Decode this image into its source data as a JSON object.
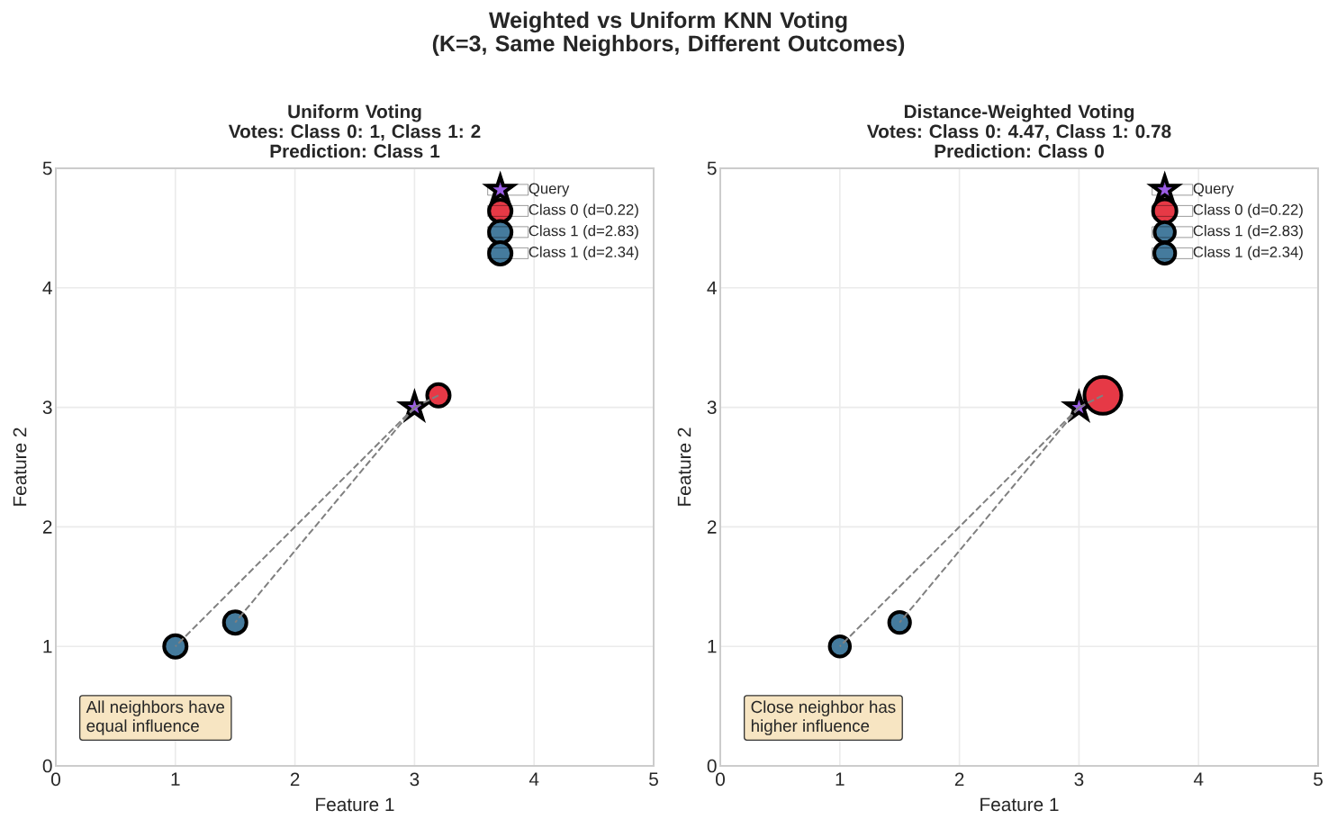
{
  "chart_data": [
    {
      "type": "scatter",
      "title": "Weighted vs Uniform KNN Voting\n(K=3, Same Neighbors, Different Outcomes)",
      "subtitle": "Uniform Voting\nVotes: Class 0: 1, Class 1: 2\nPrediction: Class 1",
      "xlabel": "Feature 1",
      "ylabel": "Feature 2",
      "xlim": [
        0,
        5
      ],
      "ylim": [
        0,
        5
      ],
      "xticks": [
        0,
        1,
        2,
        3,
        4,
        5
      ],
      "yticks": [
        0,
        1,
        2,
        3,
        4,
        5
      ],
      "grid": true,
      "legend": "top right",
      "annotations": [
        "All neighbors have\nequal influence"
      ],
      "series": [
        {
          "name": "Query",
          "color": "#9b5de5",
          "marker": "star",
          "x": [
            3
          ],
          "values": [
            3
          ]
        },
        {
          "name": "Class 0 (d=0.22)",
          "color": "#e63946",
          "marker": "circle",
          "x": [
            3.2
          ],
          "values": [
            3.1
          ]
        },
        {
          "name": "Class 1 (d=2.83)",
          "color": "#457b9d",
          "marker": "circle",
          "x": [
            1
          ],
          "values": [
            1
          ]
        },
        {
          "name": "Class 1 (d=2.34)",
          "color": "#457b9d",
          "marker": "circle",
          "x": [
            1.5
          ],
          "values": [
            1.2
          ]
        },
        {
          "type": "line",
          "color": "#808080",
          "line_style": "dashed",
          "marker": "none",
          "x": [
            3,
            3.2
          ],
          "values": [
            3,
            3.1
          ]
        },
        {
          "type": "line",
          "color": "#808080",
          "line_style": "dashed",
          "marker": "none",
          "x": [
            3,
            1
          ],
          "values": [
            3,
            1
          ]
        },
        {
          "type": "line",
          "color": "#808080",
          "line_style": "dashed",
          "marker": "none",
          "x": [
            3,
            1.5
          ],
          "values": [
            3,
            1.2
          ]
        }
      ]
    },
    {
      "type": "scatter",
      "subtitle": "Distance-Weighted Voting\nVotes: Class 0: 4.47, Class 1: 0.78\nPrediction: Class 0",
      "xlabel": "Feature 1",
      "ylabel": "Feature 2",
      "xlim": [
        0,
        5
      ],
      "ylim": [
        0,
        5
      ],
      "xticks": [
        0,
        1,
        2,
        3,
        4,
        5
      ],
      "yticks": [
        0,
        1,
        2,
        3,
        4,
        5
      ],
      "grid": true,
      "legend": "top right",
      "annotations": [
        "Close neighbor has\nhigher influence"
      ],
      "series": [
        {
          "name": "Query",
          "color": "#9b5de5",
          "marker": "star",
          "x": [
            3
          ],
          "values": [
            3
          ]
        },
        {
          "name": "Class 0 (d=0.22)",
          "type": "bubble",
          "color": "#e63946",
          "marker": "circle",
          "x": [
            3.2
          ],
          "values": [
            3.1
          ],
          "sizes": [
            1
          ]
        },
        {
          "name": "Class 1 (d=2.83)",
          "type": "bubble",
          "color": "#457b9d",
          "marker": "circle",
          "x": [
            1
          ],
          "values": [
            1
          ],
          "sizes": [
            0.3
          ]
        },
        {
          "name": "Class 1 (d=2.34)",
          "type": "bubble",
          "color": "#457b9d",
          "marker": "circle",
          "x": [
            1.5
          ],
          "values": [
            1.2
          ],
          "sizes": [
            0.32
          ]
        },
        {
          "type": "line",
          "color": "#808080",
          "line_style": "dashed",
          "marker": "none",
          "x": [
            3,
            3.2
          ],
          "values": [
            3,
            3.1
          ]
        },
        {
          "type": "line",
          "color": "#808080",
          "line_style": "dashed",
          "marker": "none",
          "x": [
            3,
            1
          ],
          "values": [
            3,
            1
          ]
        },
        {
          "type": "line",
          "color": "#808080",
          "line_style": "dashed",
          "marker": "none",
          "x": [
            3,
            1.5
          ],
          "values": [
            3,
            1.2
          ]
        }
      ]
    }
  ]
}
